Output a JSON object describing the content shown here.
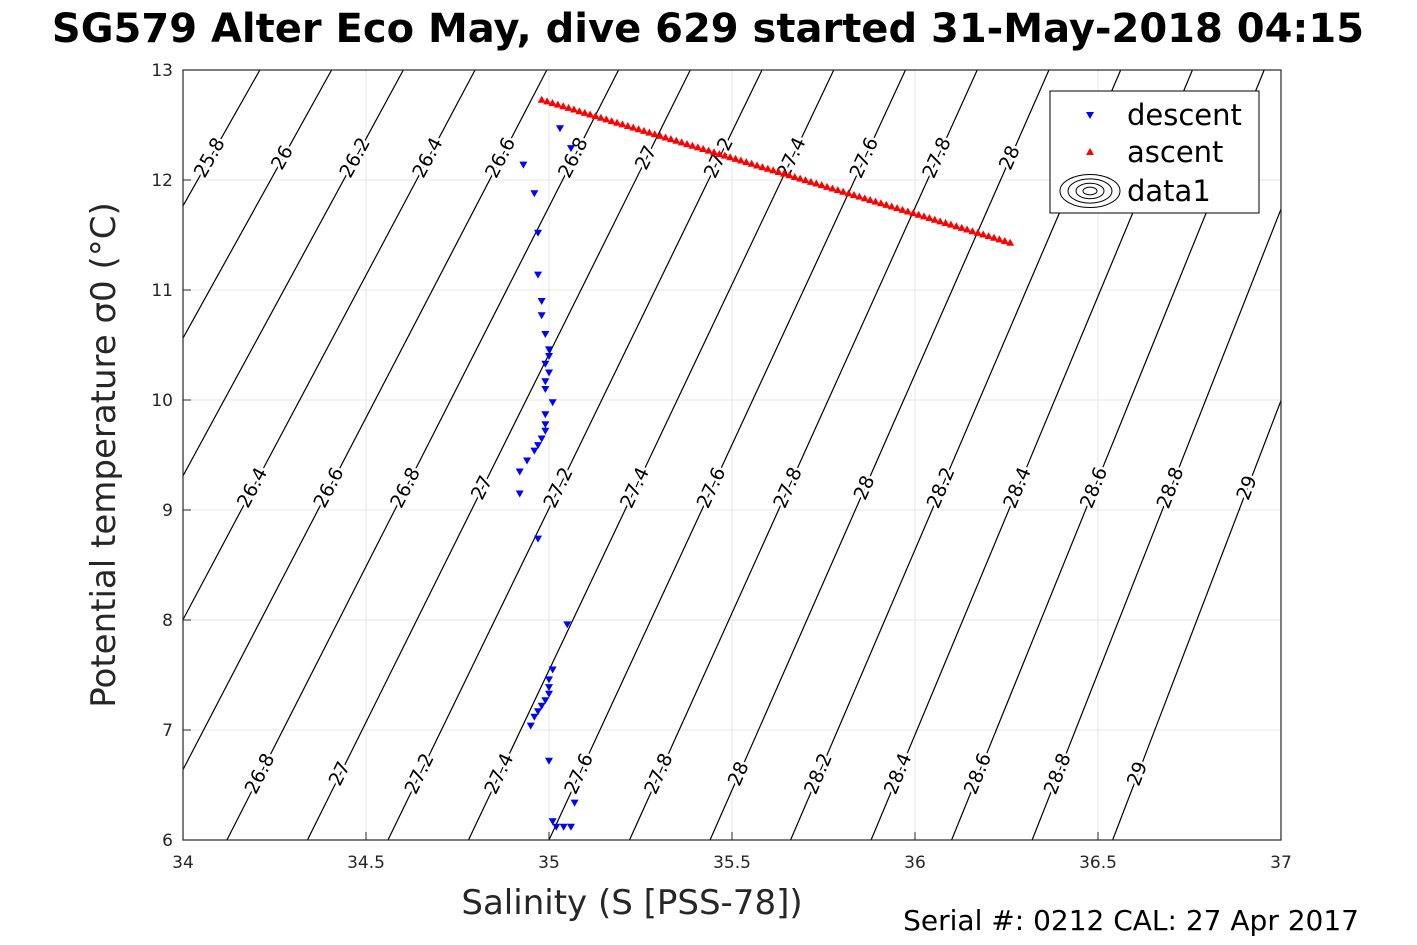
{
  "title": "SG579 Alter Eco May, dive 629 started 31-May-2018 04:15",
  "footer": "Serial #: 0212  CAL: 27 Apr 2017",
  "colors": {
    "descent": "#0000ff",
    "ascent": "#ff0000",
    "contour": "#000000",
    "grid": "#e6e6e6",
    "axis": "#262626"
  },
  "chart_data": {
    "type": "scatter",
    "xlabel": "Salinity (S [PSS-78])",
    "ylabel": "Potential temperature σ0 (°C)",
    "xlim": [
      34,
      37
    ],
    "ylim": [
      6,
      13
    ],
    "grid": true,
    "legend_position": "top-right",
    "x_ticks": [
      "34",
      "34.5",
      "35",
      "35.5",
      "36",
      "36.5",
      "37"
    ],
    "y_ticks": [
      "6",
      "7",
      "8",
      "9",
      "10",
      "11",
      "12",
      "13"
    ],
    "legend": [
      "descent",
      "ascent",
      "data1"
    ],
    "series": [
      {
        "name": "descent",
        "marker": "triangle-down",
        "points": [
          [
            34.93,
            12.14
          ],
          [
            35.03,
            12.47
          ],
          [
            35.06,
            12.29
          ],
          [
            34.96,
            11.88
          ],
          [
            34.97,
            11.52
          ],
          [
            34.97,
            11.14
          ],
          [
            34.98,
            10.9
          ],
          [
            34.98,
            10.77
          ],
          [
            34.99,
            10.6
          ],
          [
            35.0,
            10.46
          ],
          [
            35.0,
            10.4
          ],
          [
            34.99,
            10.33
          ],
          [
            35.0,
            10.25
          ],
          [
            34.99,
            10.17
          ],
          [
            34.99,
            10.1
          ],
          [
            35.01,
            9.98
          ],
          [
            34.99,
            9.87
          ],
          [
            34.99,
            9.78
          ],
          [
            34.99,
            9.72
          ],
          [
            34.98,
            9.65
          ],
          [
            34.97,
            9.59
          ],
          [
            34.96,
            9.54
          ],
          [
            34.94,
            9.45
          ],
          [
            34.92,
            9.35
          ],
          [
            34.92,
            9.15
          ],
          [
            34.97,
            8.74
          ],
          [
            35.05,
            7.96
          ],
          [
            35.01,
            7.55
          ],
          [
            35.0,
            7.46
          ],
          [
            35.0,
            7.39
          ],
          [
            35.0,
            7.33
          ],
          [
            34.99,
            7.27
          ],
          [
            34.98,
            7.22
          ],
          [
            34.97,
            7.17
          ],
          [
            34.96,
            7.12
          ],
          [
            34.95,
            7.04
          ],
          [
            35.0,
            6.72
          ],
          [
            35.07,
            6.34
          ],
          [
            35.01,
            6.17
          ],
          [
            35.02,
            6.12
          ],
          [
            35.04,
            6.12
          ],
          [
            35.06,
            6.12
          ]
        ]
      },
      {
        "name": "ascent",
        "marker": "triangle-up",
        "line_from": [
          34.98,
          12.73
        ],
        "line_to": [
          36.26,
          11.43
        ],
        "count": 88
      }
    ],
    "sigma0_isopycnals": [
      "25.8",
      "26",
      "26.2",
      "26.4",
      "26.6",
      "26.8",
      "27",
      "27.2",
      "27.4",
      "27.6",
      "27.8",
      "28",
      "28.2",
      "28.4",
      "28.6",
      "28.8",
      "29"
    ]
  }
}
